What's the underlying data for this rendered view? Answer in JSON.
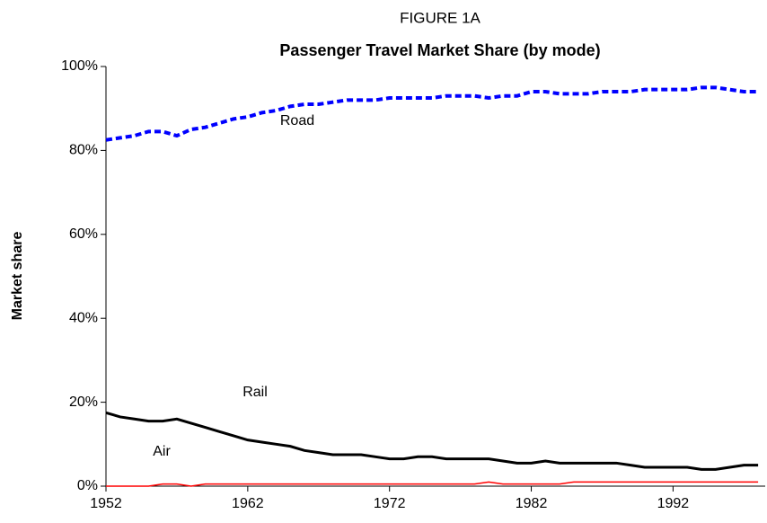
{
  "chart_data": {
    "type": "line",
    "title": "FIGURE 1A",
    "subtitle": "Passenger Travel Market Share (by mode)",
    "y_label": "Market share",
    "x": [
      1952,
      1953,
      1954,
      1955,
      1956,
      1957,
      1958,
      1959,
      1960,
      1961,
      1962,
      1963,
      1964,
      1965,
      1966,
      1967,
      1968,
      1969,
      1970,
      1971,
      1972,
      1973,
      1974,
      1975,
      1976,
      1977,
      1978,
      1979,
      1980,
      1981,
      1982,
      1983,
      1984,
      1985,
      1986,
      1987,
      1988,
      1989,
      1990,
      1991,
      1992,
      1993,
      1994,
      1995,
      1996,
      1997,
      1998
    ],
    "series": [
      {
        "name": "Road",
        "color": "#0000ff",
        "dash": true,
        "values": [
          82.5,
          83,
          83.5,
          84.5,
          84.5,
          83.5,
          85,
          85.5,
          86.5,
          87.5,
          88,
          89,
          89.5,
          90.5,
          91,
          91,
          91.5,
          92,
          92,
          92,
          92.5,
          92.5,
          92.5,
          92.5,
          93,
          93,
          93,
          92.5,
          93,
          93,
          94,
          94,
          93.5,
          93.5,
          93.5,
          94,
          94,
          94,
          94.5,
          94.5,
          94.5,
          94.5,
          95,
          95,
          94.5,
          94,
          94
        ]
      },
      {
        "name": "Rail",
        "color": "#000000",
        "dash": false,
        "values": [
          17.5,
          16.5,
          16,
          15.5,
          15.5,
          16,
          15,
          14,
          13,
          12,
          11,
          10.5,
          10,
          9.5,
          8.5,
          8,
          7.5,
          7.5,
          7.5,
          7,
          6.5,
          6.5,
          7,
          7,
          6.5,
          6.5,
          6.5,
          6.5,
          6,
          5.5,
          5.5,
          6,
          5.5,
          5.5,
          5.5,
          5.5,
          5.5,
          5,
          4.5,
          4.5,
          4.5,
          4.5,
          4,
          4,
          4.5,
          5,
          5
        ]
      },
      {
        "name": "Air",
        "color": "#ff0000",
        "dash": false,
        "values": [
          0,
          0,
          0,
          0,
          0.5,
          0.5,
          0,
          0.5,
          0.5,
          0.5,
          0.5,
          0.5,
          0.5,
          0.5,
          0.5,
          0.5,
          0.5,
          0.5,
          0.5,
          0.5,
          0.5,
          0.5,
          0.5,
          0.5,
          0.5,
          0.5,
          0.5,
          1,
          0.5,
          0.5,
          0.5,
          0.5,
          0.5,
          1,
          1,
          1,
          1,
          1,
          1,
          1,
          1,
          1,
          1,
          1,
          1,
          1,
          1
        ]
      }
    ],
    "xlim": [
      1952,
      1998.5
    ],
    "xticks": [
      1952,
      1962,
      1972,
      1982,
      1992
    ],
    "ylim": [
      0,
      100
    ],
    "yticks": [
      {
        "value": 0,
        "label": "0%"
      },
      {
        "value": 20,
        "label": "20%"
      },
      {
        "value": 40,
        "label": "40%"
      },
      {
        "value": 60,
        "label": "60%"
      },
      {
        "value": 80,
        "label": "80%"
      },
      {
        "value": 100,
        "label": "100%"
      }
    ],
    "grid": false
  }
}
